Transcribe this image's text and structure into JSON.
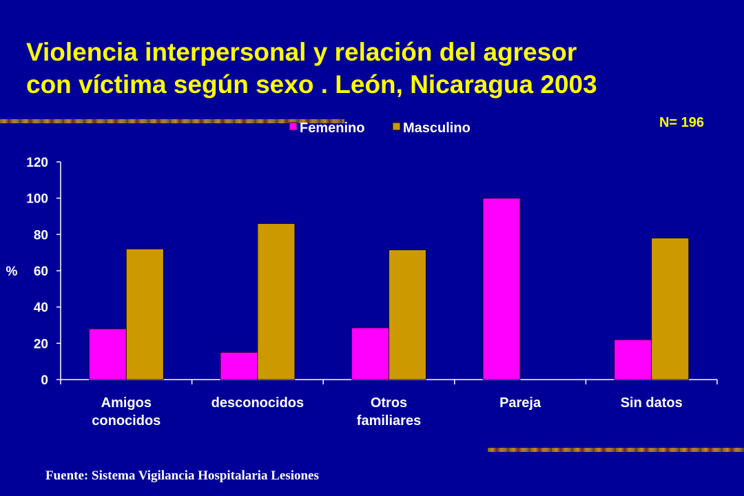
{
  "slide": {
    "title": "Violencia interpersonal y relación del agresor\ncon víctima según sexo . León, Nicaragua 2003",
    "n_label": "N= 196",
    "source": "Fuente: Sistema Vigilancia Hospitalaria Lesiones"
  },
  "colors": {
    "background": "#000099",
    "title": "#FFFF00",
    "femenino": "#FF00FF",
    "masculino": "#CC9900",
    "axis": "#FFFFFF"
  },
  "chart_data": {
    "type": "bar",
    "title": "",
    "xlabel": "",
    "ylabel": "%",
    "ylim": [
      0,
      120
    ],
    "yticks": [
      0,
      20,
      40,
      60,
      80,
      100,
      120
    ],
    "legend_position": "top-center",
    "categories": [
      [
        "Amigos",
        "conocidos"
      ],
      [
        "desconocidos"
      ],
      [
        "Otros",
        "familiares"
      ],
      [
        "Pareja"
      ],
      [
        "Sin datos"
      ]
    ],
    "series": [
      {
        "name": "Femenino",
        "values": [
          28,
          15,
          28.5,
          100,
          22
        ]
      },
      {
        "name": "Masculino",
        "values": [
          72,
          86,
          71.5,
          0,
          78
        ]
      }
    ]
  }
}
